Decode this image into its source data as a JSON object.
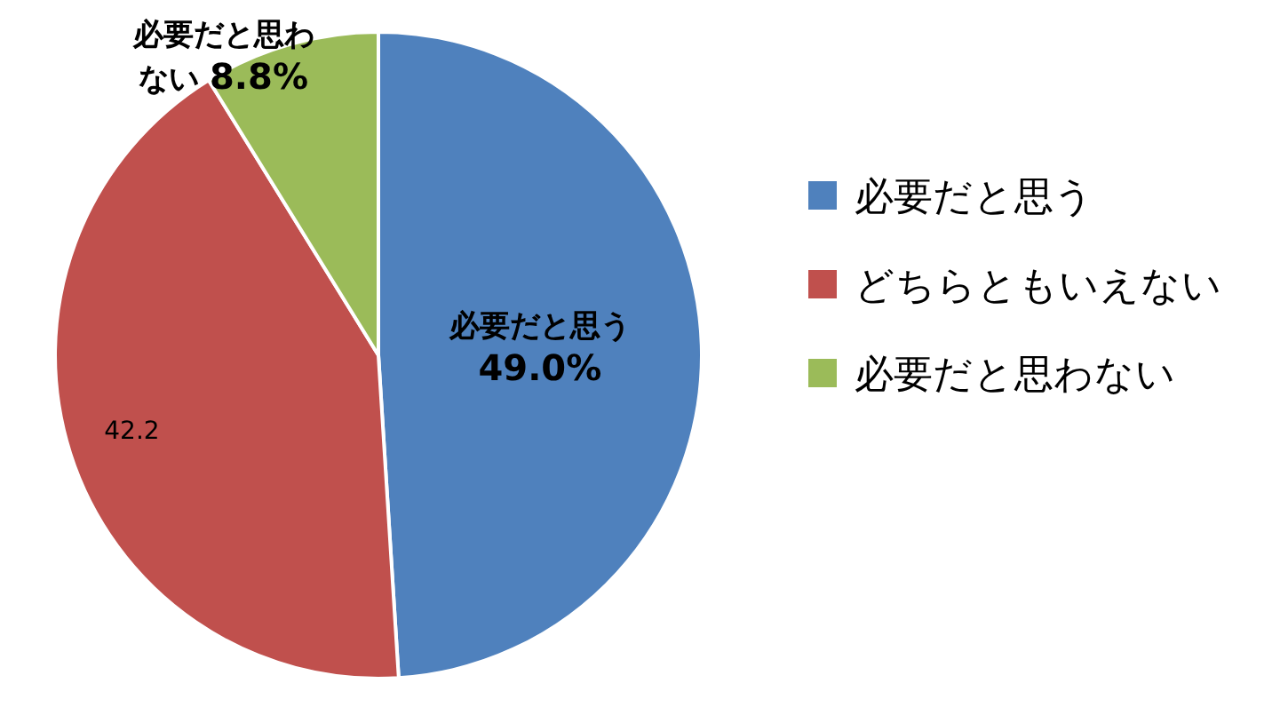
{
  "chart_data": {
    "type": "pie",
    "categories": [
      "必要だと思う",
      "どちらともいえない",
      "必要だと思わない"
    ],
    "values": [
      49.0,
      42.2,
      8.8
    ],
    "colors": [
      "#4f81bd",
      "#c0504d",
      "#9bbb59"
    ],
    "value_labels": [
      "必要だと思う 49.0%",
      "42.2",
      "必要だと思わない 8.8%"
    ],
    "legend": "right"
  }
}
